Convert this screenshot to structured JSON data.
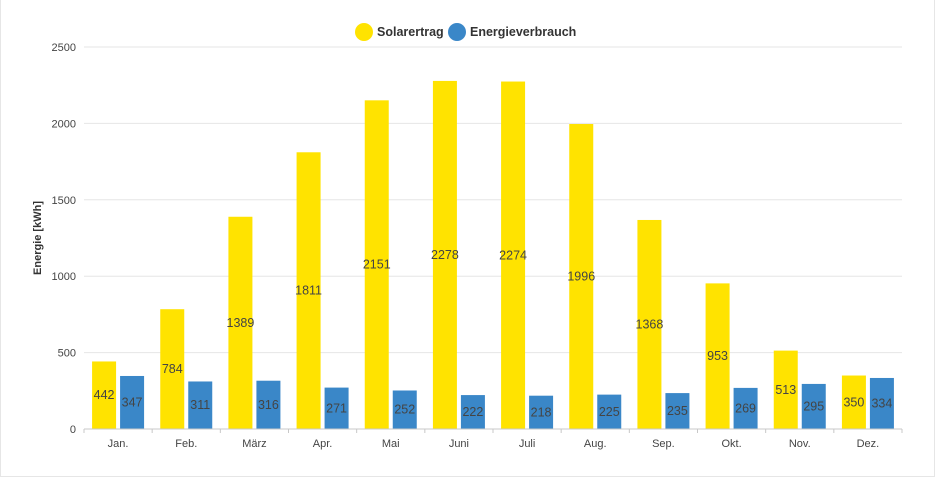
{
  "chart_data": {
    "type": "bar",
    "title": "",
    "xlabel": "",
    "ylabel": "Energie [kWh]",
    "ylim": [
      0,
      2500
    ],
    "yticks": [
      0,
      500,
      1000,
      1500,
      2000,
      2500
    ],
    "grid": true,
    "legend_position": "top-center",
    "categories": [
      "Jan.",
      "Feb.",
      "März",
      "Apr.",
      "Mai",
      "Juni",
      "Juli",
      "Aug.",
      "Sep.",
      "Okt.",
      "Nov.",
      "Dez."
    ],
    "series": [
      {
        "name": "Solarertrag",
        "color": "#FFE300",
        "values": [
          442,
          784,
          1389,
          1811,
          2151,
          2278,
          2274,
          1996,
          1368,
          953,
          513,
          350
        ]
      },
      {
        "name": "Energieverbrauch",
        "color": "#3A87C8",
        "values": [
          347,
          311,
          316,
          271,
          252,
          222,
          218,
          225,
          235,
          269,
          295,
          334
        ]
      }
    ],
    "data_labels": true
  }
}
